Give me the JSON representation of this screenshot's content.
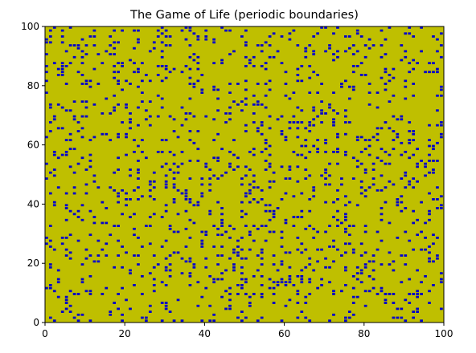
{
  "chart_data": {
    "type": "heatmap",
    "title": "The Game of Life (periodic boundaries)",
    "xlabel": "",
    "ylabel": "",
    "xlim": [
      0,
      100
    ],
    "ylim": [
      0,
      100
    ],
    "grid_size": [
      100,
      100
    ],
    "x_ticks": [
      "0",
      "20",
      "40",
      "60",
      "80",
      "100"
    ],
    "y_ticks": [
      "0",
      "20",
      "40",
      "60",
      "80",
      "100"
    ],
    "colors": {
      "dead": "#bfbf00",
      "alive": "#0000cc"
    },
    "grid": false,
    "live_cell_density": 0.13
  }
}
